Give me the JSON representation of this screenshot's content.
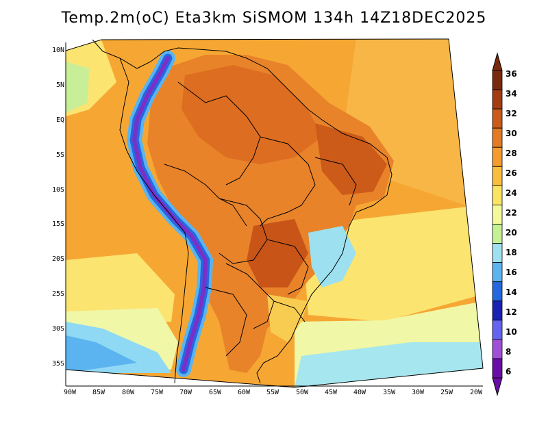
{
  "title": "Temp.2m(oC) Eta3km SiSMOM 134h 14Z18DEC2025",
  "latitude_ticks": [
    "10N",
    "5N",
    "EQ",
    "5S",
    "10S",
    "15S",
    "20S",
    "25S",
    "30S",
    "35S"
  ],
  "longitude_ticks": [
    "90W",
    "85W",
    "80W",
    "75W",
    "70W",
    "65W",
    "60W",
    "55W",
    "50W",
    "45W",
    "40W",
    "35W",
    "30W",
    "25W",
    "20W"
  ],
  "colorbar": {
    "labels": [
      "36",
      "34",
      "32",
      "30",
      "28",
      "26",
      "24",
      "22",
      "20",
      "18",
      "16",
      "14",
      "12",
      "10",
      "8",
      "6"
    ],
    "colors": [
      "#7a2a0c",
      "#a43d12",
      "#cd5a18",
      "#e47a22",
      "#f59a2d",
      "#fbbd3c",
      "#fbe460",
      "#f4fa9a",
      "#c4f293",
      "#9de0f0",
      "#5bb4f0",
      "#2468e0",
      "#1a22b4",
      "#6464f0",
      "#a050d8",
      "#6a0ca8"
    ]
  }
}
